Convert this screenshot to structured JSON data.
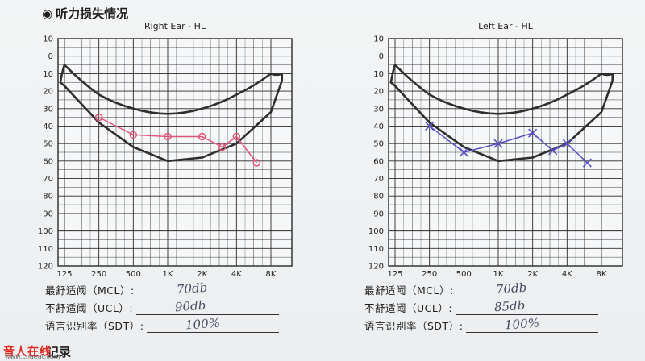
{
  "section_title": "听力损失情况",
  "section_bullet": "◉",
  "section2_title": "记录",
  "watermark": {
    "text": "音人在线",
    "url": "www.cnaeat.com"
  },
  "colors": {
    "grid": "#2a2a2a",
    "banana": "#2e2e2e",
    "right_ear": "#e0557a",
    "left_ear": "#5a4fc4"
  },
  "chart_data": [
    {
      "type": "line",
      "title": "Right Ear - HL",
      "x_ticks": [
        "125",
        "250",
        "500",
        "1K",
        "2K",
        "4K",
        "8K"
      ],
      "y_ticks": [
        "-10",
        "0",
        "10",
        "20",
        "30",
        "40",
        "50",
        "60",
        "70",
        "80",
        "90",
        "100",
        "110",
        "120"
      ],
      "ylim": [
        -10,
        120
      ],
      "y_inverted": true,
      "grid": true,
      "marker": "circle",
      "series": [
        {
          "x": [
            250,
            500,
            1000,
            2000,
            3000,
            4000,
            6000
          ],
          "y": [
            35,
            45,
            46,
            46,
            52,
            46,
            61
          ]
        }
      ]
    },
    {
      "type": "line",
      "title": "Left Ear - HL",
      "x_ticks": [
        "125",
        "250",
        "500",
        "1K",
        "2K",
        "4K",
        "8K"
      ],
      "y_ticks": [
        "-10",
        "0",
        "10",
        "20",
        "30",
        "40",
        "50",
        "60",
        "70",
        "80",
        "90",
        "100",
        "110",
        "120"
      ],
      "ylim": [
        -10,
        120
      ],
      "y_inverted": true,
      "grid": true,
      "marker": "x",
      "series": [
        {
          "x": [
            250,
            500,
            1000,
            2000,
            3000,
            4000,
            6000
          ],
          "y": [
            40,
            55,
            50,
            44,
            54,
            50,
            61
          ]
        }
      ]
    }
  ],
  "forms": {
    "right": [
      {
        "label": "最舒适阈（MCL）:",
        "value": "70db"
      },
      {
        "label": "不舒适阈（UCL）:",
        "value": "90db"
      },
      {
        "label": "语言识别率（SDT）:",
        "value": "100%"
      }
    ],
    "left": [
      {
        "label": "最舒适阈（MCL）:",
        "value": "70db"
      },
      {
        "label": "不舒适阈（UCL）:",
        "value": "85db"
      },
      {
        "label": "语言识别率（SDT）:",
        "value": "100%"
      }
    ]
  }
}
